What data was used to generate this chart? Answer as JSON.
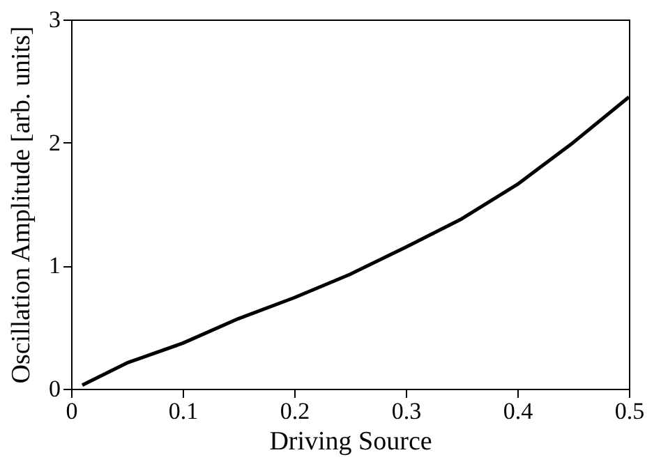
{
  "chart_data": {
    "type": "line",
    "xlabel": "Driving Source",
    "ylabel": "Oscillation Amplitude [arb. units]",
    "x": [
      0.01,
      0.05,
      0.1,
      0.15,
      0.2,
      0.25,
      0.3,
      0.35,
      0.4,
      0.45,
      0.5
    ],
    "series": [
      {
        "color": "#000000",
        "values": [
          0.03,
          0.21,
          0.37,
          0.57,
          0.74,
          0.93,
          1.15,
          1.38,
          1.66,
          2.0,
          2.37
        ]
      }
    ],
    "xlim": [
      0,
      0.5
    ],
    "ylim": [
      0,
      3
    ],
    "xticks": [
      0,
      0.1,
      0.2,
      0.3,
      0.4,
      0.5
    ],
    "yticks": [
      0,
      1,
      2,
      3
    ],
    "grid": false,
    "marker": "none",
    "line_style": "solid"
  }
}
